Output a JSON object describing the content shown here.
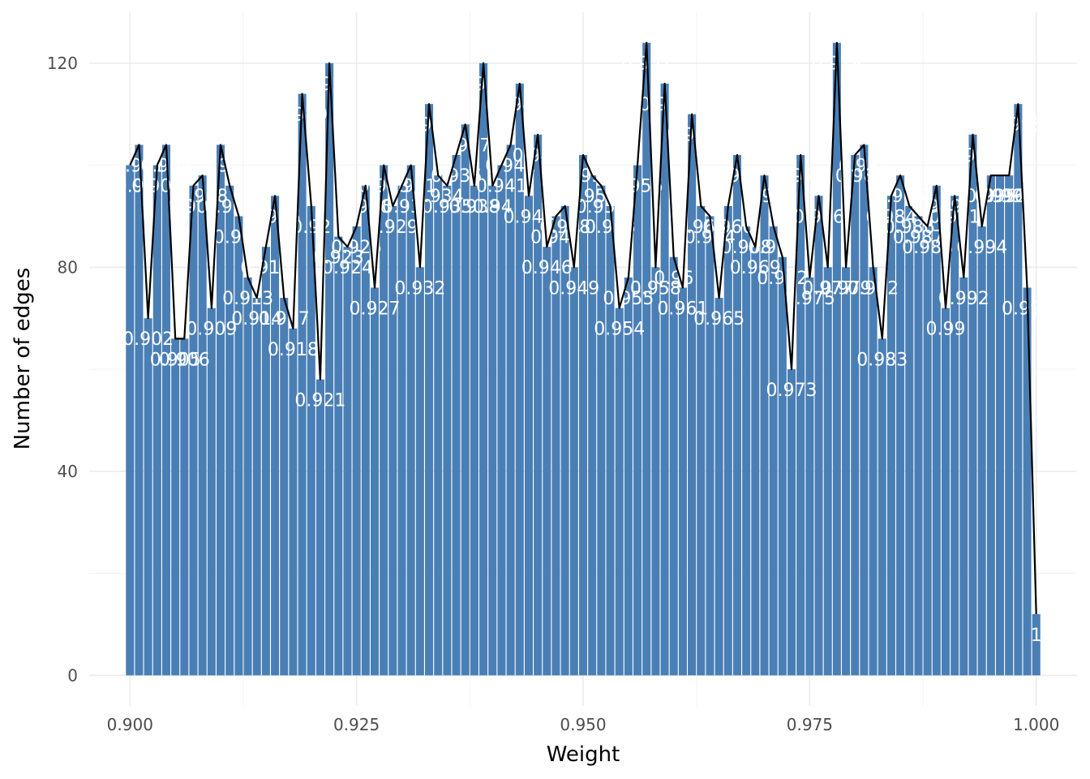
{
  "chart_data": {
    "type": "bar",
    "title": "",
    "xlabel": "Weight",
    "ylabel": "Number of edges",
    "xlim": [
      0.8955,
      1.0045
    ],
    "ylim": [
      -6,
      130
    ],
    "xticks": [
      0.9,
      0.925,
      0.95,
      0.975,
      1.0
    ],
    "xtick_labels": [
      "0.900",
      "0.925",
      "0.950",
      "0.975",
      "1.000"
    ],
    "yticks": [
      0,
      40,
      80,
      120
    ],
    "ytick_labels": [
      "0",
      "40",
      "80",
      "120"
    ],
    "grid": true,
    "bar_color": "#4a7fb5",
    "line_color": "#000000",
    "label_color": "#ffffff",
    "x": [
      0.9,
      0.901,
      0.902,
      0.903,
      0.904,
      0.905,
      0.906,
      0.907,
      0.908,
      0.909,
      0.91,
      0.911,
      0.912,
      0.913,
      0.914,
      0.915,
      0.916,
      0.917,
      0.918,
      0.919,
      0.92,
      0.921,
      0.922,
      0.923,
      0.924,
      0.925,
      0.926,
      0.927,
      0.928,
      0.929,
      0.93,
      0.931,
      0.932,
      0.933,
      0.934,
      0.935,
      0.936,
      0.937,
      0.938,
      0.939,
      0.94,
      0.941,
      0.942,
      0.943,
      0.944,
      0.945,
      0.946,
      0.947,
      0.948,
      0.949,
      0.95,
      0.951,
      0.952,
      0.953,
      0.954,
      0.955,
      0.956,
      0.957,
      0.958,
      0.959,
      0.96,
      0.961,
      0.962,
      0.963,
      0.964,
      0.965,
      0.966,
      0.967,
      0.968,
      0.969,
      0.97,
      0.971,
      0.972,
      0.973,
      0.974,
      0.975,
      0.976,
      0.977,
      0.978,
      0.979,
      0.98,
      0.981,
      0.982,
      0.983,
      0.984,
      0.985,
      0.986,
      0.987,
      0.988,
      0.989,
      0.99,
      0.991,
      0.992,
      0.993,
      0.994,
      0.995,
      0.996,
      0.997,
      0.998,
      0.999,
      1.0
    ],
    "values": [
      100,
      104,
      70,
      100,
      104,
      66,
      66,
      96,
      98,
      72,
      104,
      96,
      90,
      78,
      74,
      84,
      94,
      74,
      68,
      114,
      92,
      58,
      120,
      86,
      84,
      88,
      96,
      76,
      100,
      92,
      96,
      100,
      80,
      112,
      98,
      96,
      102,
      108,
      96,
      120,
      96,
      100,
      104,
      116,
      94,
      106,
      84,
      90,
      92,
      80,
      102,
      98,
      96,
      92,
      72,
      78,
      100,
      124,
      80,
      116,
      82,
      76,
      110,
      92,
      90,
      74,
      92,
      102,
      88,
      84,
      98,
      88,
      82,
      60,
      102,
      78,
      94,
      80,
      124,
      80,
      102,
      104,
      80,
      66,
      94,
      98,
      92,
      90,
      88,
      96,
      72,
      94,
      78,
      106,
      88,
      98,
      98,
      98,
      112,
      76,
      12
    ],
    "labels": [
      "0.9",
      "0.901",
      "0.902",
      "0.903",
      "0.904",
      "0.905",
      "0.906",
      "0.907",
      "0.908",
      "0.909",
      "0.91",
      "0.911",
      "0.912",
      "0.913",
      "0.914",
      "0.915",
      "0.916",
      "0.917",
      "0.918",
      "0.919",
      "0.92",
      "0.921",
      "0.922",
      "0.923",
      "0.924",
      "0.925",
      "0.926",
      "0.927",
      "0.928",
      "0.929",
      "0.93",
      "0.931",
      "0.932",
      "0.933",
      "0.934",
      "0.935",
      "0.936",
      "0.937",
      "0.938",
      "0.939",
      "0.94",
      "0.941",
      "0.942",
      "0.943",
      "0.944",
      "0.945",
      "0.946",
      "0.947",
      "0.948",
      "0.949",
      "0.95",
      "0.951",
      "0.952",
      "0.953",
      "0.954",
      "0.955",
      "0.956",
      "0.957",
      "0.958",
      "0.959",
      "0.96",
      "0.961",
      "0.962",
      "0.963",
      "0.964",
      "0.965",
      "0.966",
      "0.967",
      "0.968",
      "0.969",
      "0.97",
      "0.971",
      "0.972",
      "0.973",
      "0.974",
      "0.975",
      "0.976",
      "0.977",
      "0.978",
      "0.979",
      "0.98",
      "0.981",
      "0.982",
      "0.983",
      "0.984",
      "0.985",
      "0.986",
      "0.987",
      "0.988",
      "0.989",
      "0.99",
      "0.991",
      "0.992",
      "0.993",
      "0.994",
      "0.995",
      "0.996",
      "0.997",
      "0.998",
      "0.999",
      "1"
    ]
  }
}
